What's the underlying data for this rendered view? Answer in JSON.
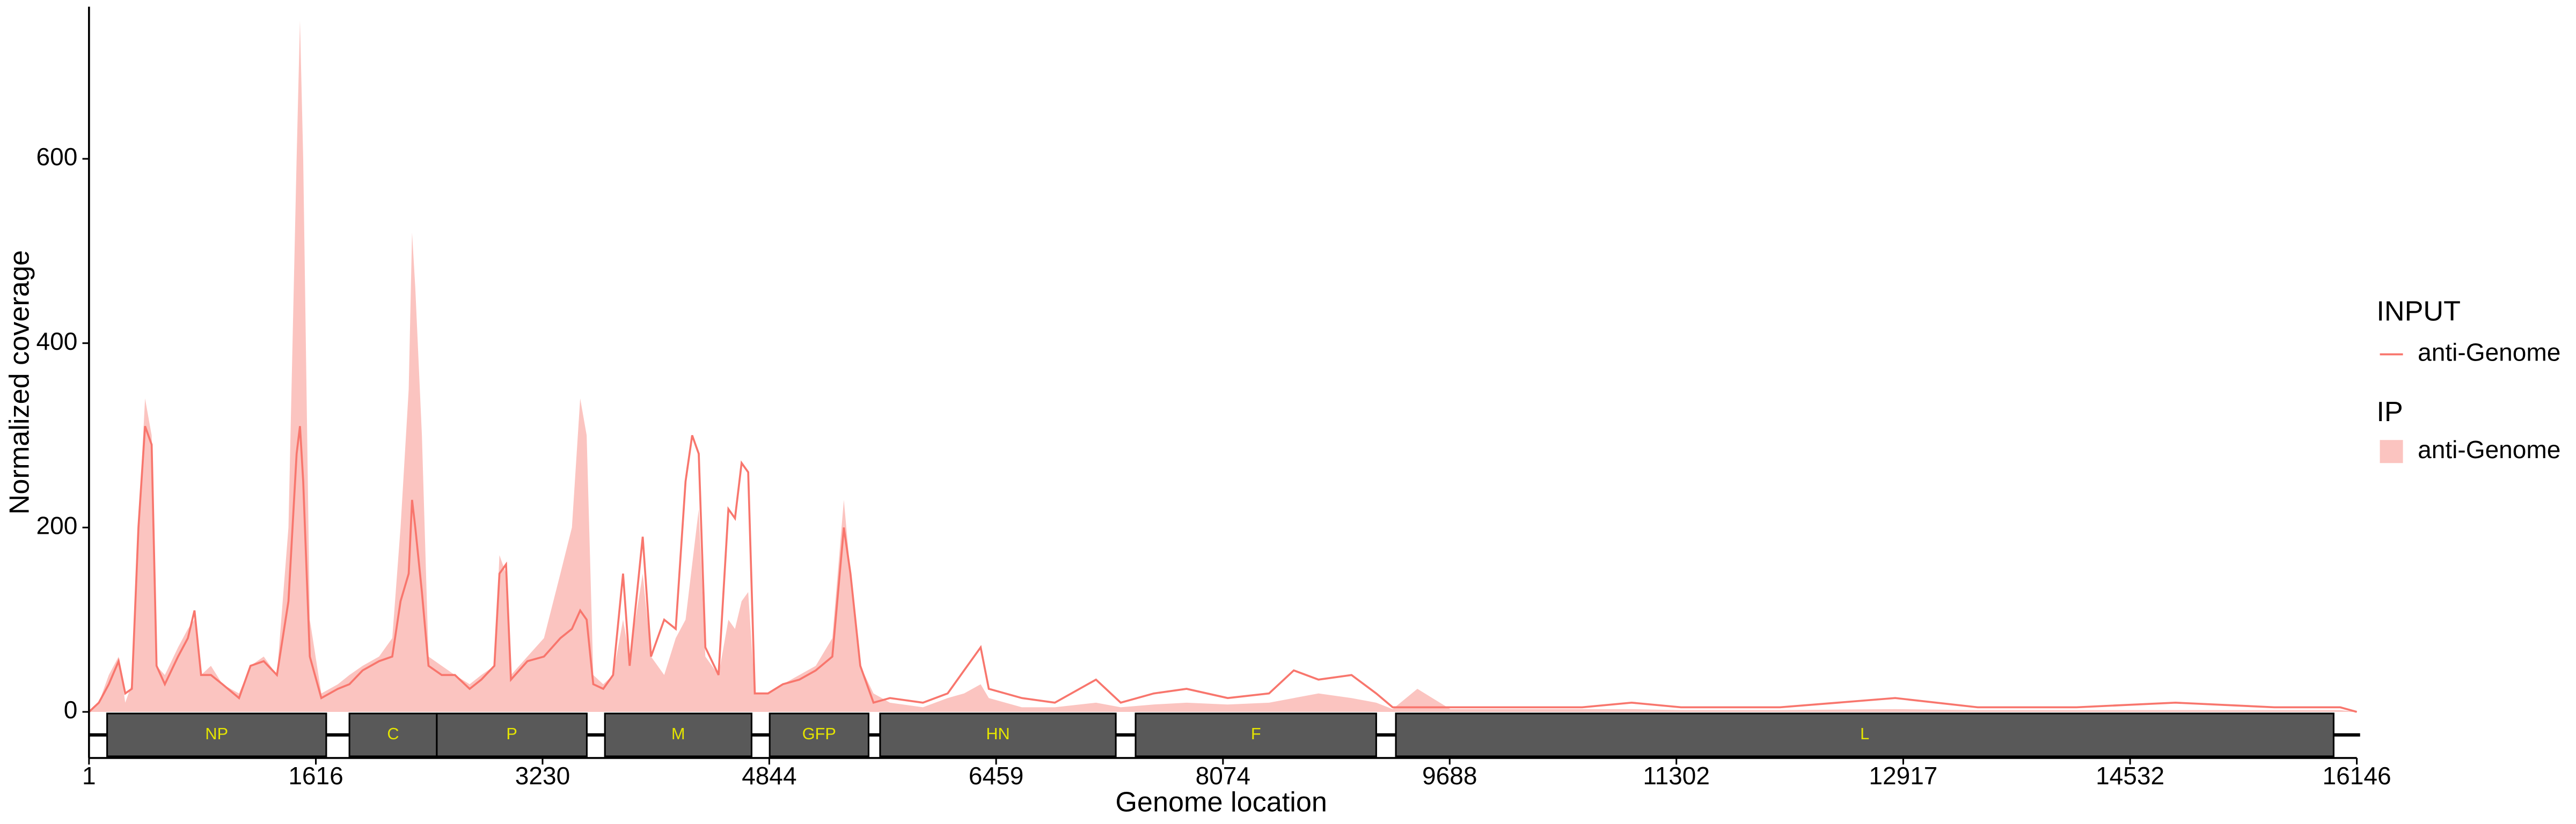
{
  "chart_data": {
    "type": "area",
    "x_label": "Genome location",
    "y_label": "Normalized coverage",
    "xlim": [
      1,
      16146
    ],
    "ylim": [
      -50,
      765
    ],
    "xticks": [
      1,
      1616,
      3230,
      4844,
      6459,
      8074,
      9688,
      11302,
      12917,
      14532,
      16146
    ],
    "yticks": [
      0,
      200,
      400,
      600
    ],
    "x": [
      1,
      71,
      142,
      212,
      259,
      306,
      353,
      400,
      447,
      482,
      541,
      635,
      705,
      752,
      799,
      869,
      951,
      1069,
      1151,
      1245,
      1339,
      1421,
      1479,
      1503,
      1526,
      1573,
      1655,
      1773,
      1855,
      1949,
      2066,
      2160,
      2219,
      2277,
      2301,
      2324,
      2371,
      2418,
      2512,
      2606,
      2711,
      2794,
      2887,
      2923,
      2970,
      3005,
      3122,
      3240,
      3357,
      3439,
      3498,
      3544,
      3591,
      3662,
      3732,
      3803,
      3850,
      3943,
      4002,
      4096,
      4178,
      4248,
      4295,
      4342,
      4389,
      4483,
      4553,
      4600,
      4647,
      4694,
      4741,
      4835,
      4941,
      5058,
      5175,
      5293,
      5375,
      5422,
      5492,
      5586,
      5703,
      5938,
      6114,
      6231,
      6349,
      6407,
      6642,
      6877,
      7170,
      7346,
      7581,
      7815,
      8108,
      8402,
      8578,
      8754,
      8989,
      9165,
      9282,
      9458,
      9693,
      10162,
      10631,
      10983,
      11335,
      12039,
      12860,
      13447,
      14151,
      14855,
      15559,
      16028,
      16146
    ],
    "series": [
      {
        "name": "anti-Genome",
        "group": "INPUT",
        "kind": "line",
        "color": "#F8766D",
        "values": [
          0,
          10,
          30,
          55,
          20,
          25,
          200,
          310,
          290,
          50,
          30,
          60,
          80,
          110,
          40,
          40,
          30,
          15,
          50,
          55,
          40,
          120,
          280,
          310,
          250,
          60,
          15,
          25,
          30,
          45,
          55,
          60,
          120,
          150,
          230,
          200,
          130,
          50,
          40,
          40,
          25,
          35,
          50,
          150,
          160,
          35,
          55,
          60,
          80,
          90,
          110,
          100,
          30,
          25,
          40,
          150,
          50,
          190,
          60,
          100,
          90,
          250,
          300,
          280,
          70,
          40,
          220,
          210,
          270,
          260,
          20,
          20,
          30,
          35,
          45,
          60,
          200,
          150,
          50,
          10,
          15,
          10,
          20,
          45,
          70,
          25,
          15,
          10,
          35,
          10,
          20,
          25,
          15,
          20,
          45,
          35,
          40,
          20,
          5,
          5,
          5,
          5,
          5,
          10,
          5,
          5,
          15,
          5,
          5,
          10,
          5,
          5,
          0
        ]
      },
      {
        "name": "anti-Genome",
        "group": "IP",
        "kind": "fill",
        "color": "#FBC4C0",
        "values": [
          0,
          10,
          40,
          60,
          10,
          30,
          200,
          340,
          300,
          50,
          40,
          70,
          90,
          100,
          40,
          50,
          30,
          20,
          50,
          60,
          40,
          200,
          600,
          750,
          600,
          100,
          20,
          30,
          40,
          50,
          60,
          80,
          200,
          350,
          520,
          460,
          300,
          60,
          50,
          40,
          30,
          40,
          50,
          170,
          150,
          40,
          60,
          80,
          150,
          200,
          340,
          300,
          40,
          30,
          40,
          100,
          60,
          150,
          60,
          40,
          80,
          100,
          160,
          220,
          60,
          40,
          100,
          90,
          120,
          130,
          20,
          20,
          30,
          40,
          50,
          80,
          230,
          150,
          50,
          20,
          10,
          5,
          15,
          20,
          30,
          15,
          5,
          5,
          10,
          5,
          8,
          10,
          8,
          10,
          15,
          20,
          15,
          10,
          3,
          25,
          3,
          3,
          3,
          3,
          2,
          2,
          3,
          2,
          2,
          2,
          2,
          2,
          0
        ]
      }
    ],
    "genes": [
      {
        "name": "NP",
        "start": 130,
        "end": 1690
      },
      {
        "name": "C",
        "start": 1855,
        "end": 2477
      },
      {
        "name": "P",
        "start": 2477,
        "end": 3545
      },
      {
        "name": "M",
        "start": 3674,
        "end": 4718
      },
      {
        "name": "GFP",
        "start": 4847,
        "end": 5551
      },
      {
        "name": "HN",
        "start": 5633,
        "end": 7311
      },
      {
        "name": "F",
        "start": 7452,
        "end": 9165
      },
      {
        "name": "L",
        "start": 9305,
        "end": 15981
      }
    ],
    "gene_color": "#595959",
    "gene_label_color": "#E5E500"
  }
}
